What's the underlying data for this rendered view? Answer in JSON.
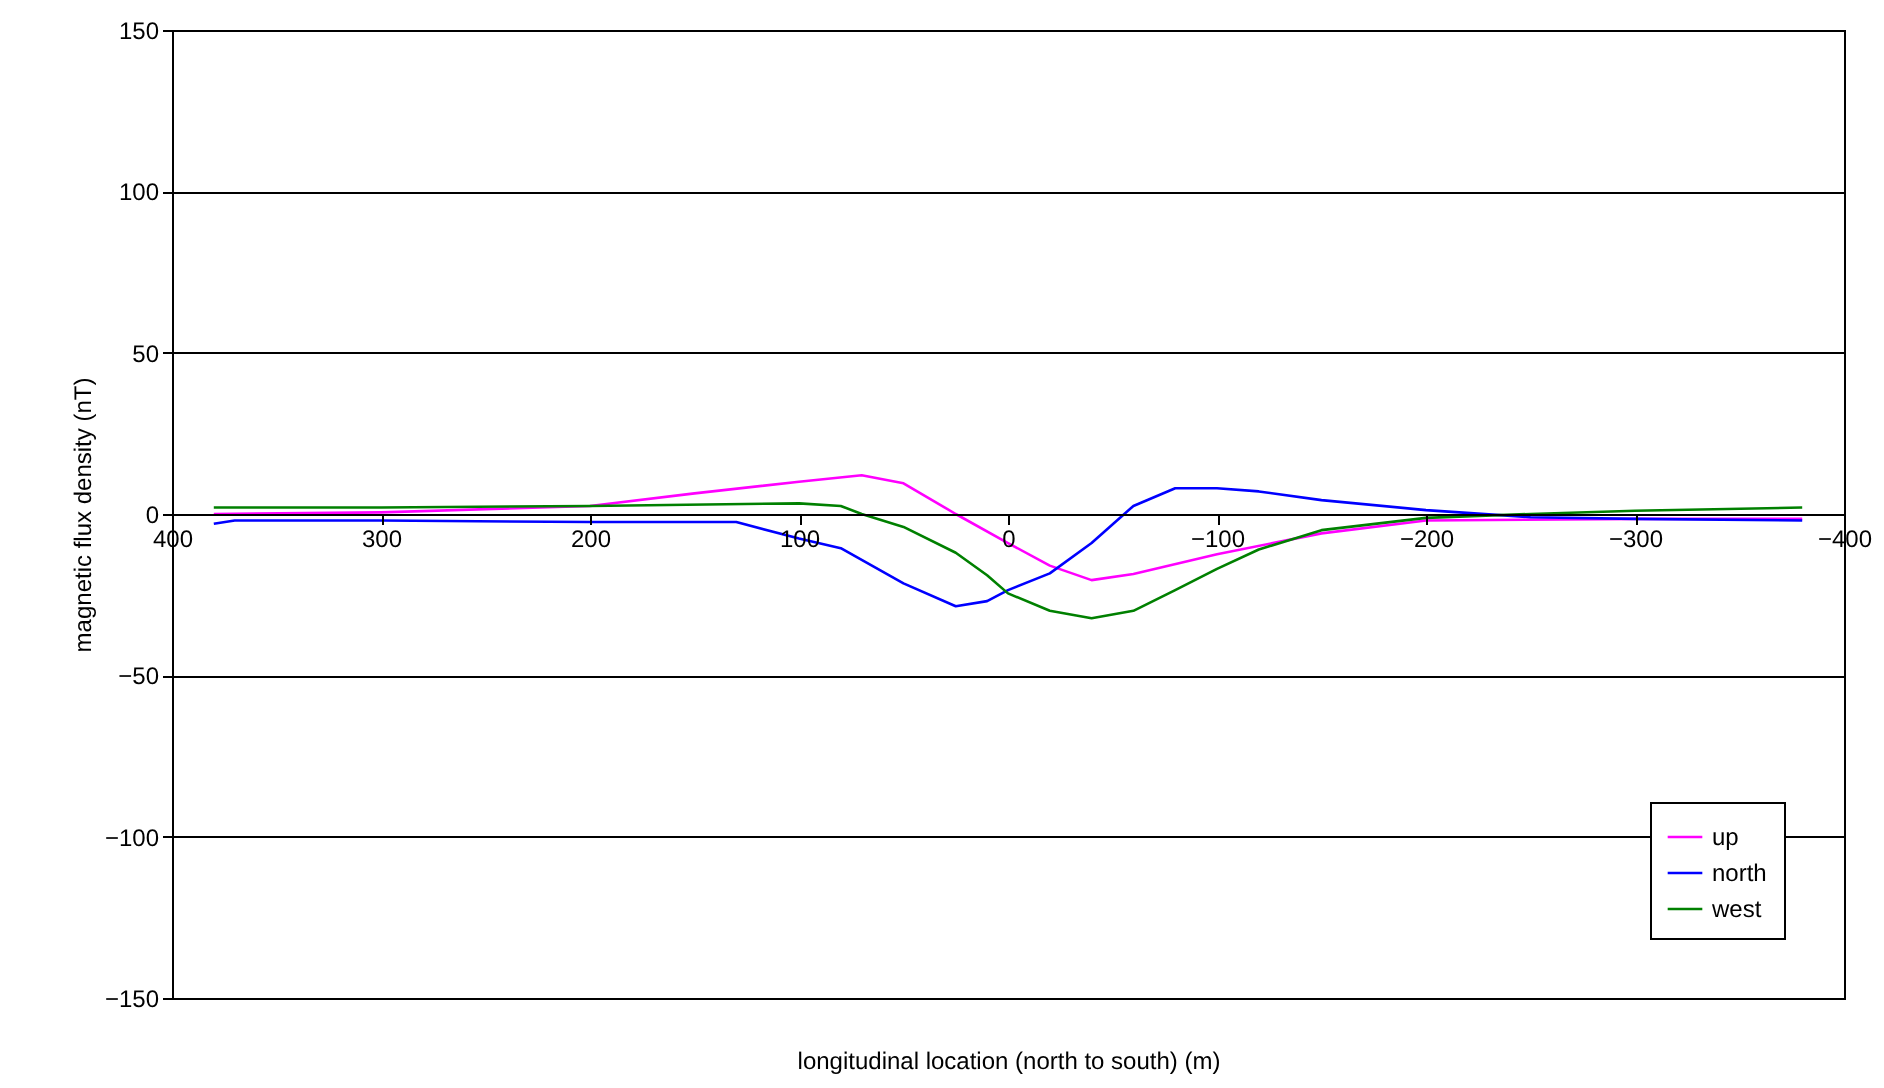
{
  "chart_data": {
    "type": "line",
    "xlabel": "longitudinal location (north to south) (m)",
    "ylabel": "magnetic flux density (nT)",
    "xlim": [
      400,
      -400
    ],
    "xticks": [
      400,
      300,
      200,
      100,
      0,
      -100,
      -200,
      -300,
      -400
    ],
    "ylim": [
      -150,
      150
    ],
    "yticks": [
      -150,
      -100,
      -50,
      0,
      50,
      100,
      150
    ],
    "grid": "y",
    "legend": "bottom right",
    "marker": "none",
    "line_style": "solid",
    "series": [
      {
        "name": "up",
        "color": "#ff00ff",
        "x": [
          380,
          300,
          200,
          150,
          100,
          70,
          50,
          25,
          0,
          -20,
          -40,
          -60,
          -100,
          -150,
          -200,
          -300,
          -380
        ],
        "values": [
          0,
          0.5,
          2.5,
          6.4,
          10,
          12,
          9.5,
          0,
          -9,
          -16,
          -20.5,
          -18.6,
          -12.5,
          -6,
          -2,
          -1.5,
          -1.5
        ]
      },
      {
        "name": "north",
        "color": "#0000ff",
        "x": [
          380,
          370,
          300,
          200,
          130,
          100,
          80,
          50,
          25,
          10,
          0,
          -20,
          -40,
          -60,
          -80,
          -100,
          -120,
          -150,
          -200,
          -250,
          -300,
          -380
        ],
        "values": [
          -3,
          -2,
          -2,
          -2.5,
          -2.5,
          -7.6,
          -10.6,
          -21.5,
          -28.6,
          -27,
          -23.6,
          -18.4,
          -9,
          2.5,
          8,
          8,
          7,
          4.3,
          1.2,
          -1,
          -1.5,
          -2
        ]
      },
      {
        "name": "west",
        "color": "#008000",
        "x": [
          380,
          300,
          200,
          100,
          80,
          70,
          50,
          25,
          10,
          0,
          -20,
          -40,
          -60,
          -80,
          -100,
          -120,
          -150,
          -200,
          -250,
          -300,
          -380
        ],
        "values": [
          2,
          2,
          2.5,
          3.3,
          2.5,
          0,
          -4,
          -12,
          -19,
          -24.6,
          -30,
          -32.3,
          -30,
          -23.6,
          -17,
          -11,
          -5,
          -1.2,
          0,
          1,
          2
        ]
      }
    ]
  }
}
